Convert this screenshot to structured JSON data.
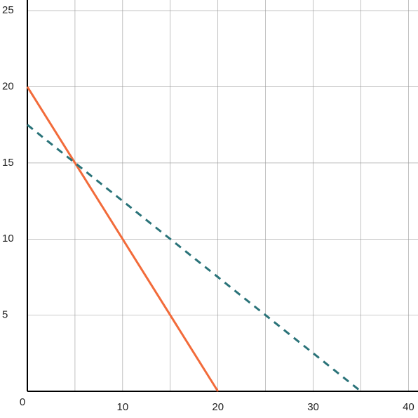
{
  "chart_data": {
    "type": "line",
    "x_series": [
      [
        0,
        20
      ],
      [
        0,
        35
      ]
    ],
    "series": [
      {
        "color": "#f26b3a",
        "dashed": false,
        "x": [
          0,
          20
        ],
        "values": [
          20,
          0
        ]
      },
      {
        "color": "#2a7379",
        "dashed": true,
        "x": [
          0,
          35
        ],
        "values": [
          17.5,
          0
        ]
      }
    ],
    "xlim": [
      0,
      41
    ],
    "ylim": [
      0,
      25.7
    ],
    "xticks": [
      0,
      10,
      20,
      30,
      40
    ],
    "yticks": [
      5,
      10,
      15,
      20,
      25
    ],
    "xgrid": [
      5,
      10,
      15,
      20,
      25,
      30,
      35,
      40
    ],
    "ygrid": [
      5,
      10,
      15,
      20,
      25
    ],
    "grid": true
  }
}
